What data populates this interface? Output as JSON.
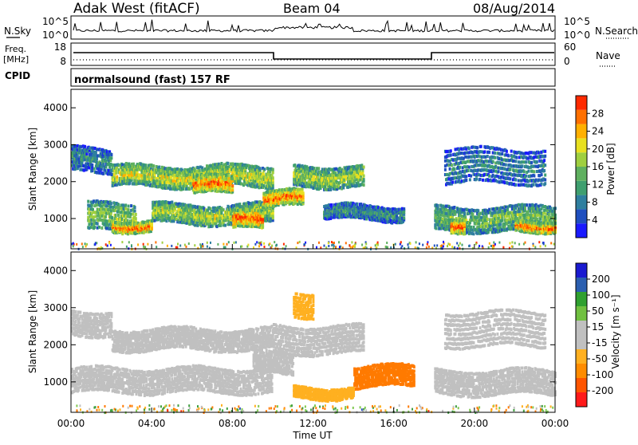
{
  "header": {
    "title": "Adak West (fitACF)",
    "beam": "Beam 04",
    "date": "08/Aug/2014"
  },
  "panels": {
    "nsky_label": "N.Sky",
    "nsearch_label": "N.Search",
    "nsky_ticks": [
      "10^5",
      "10^0"
    ],
    "nsearch_ticks": [
      "10^5",
      "10^0"
    ],
    "freq_label_1": "Freq.",
    "freq_label_2": "[MHz]",
    "freq_ticks": [
      "18",
      "8"
    ],
    "nave_label": "Nave",
    "nave_ticks": [
      "60",
      "0"
    ],
    "cpid_label": "CPID",
    "cpid_text": "normalsound (fast) 157 RF"
  },
  "colorbars": {
    "power": {
      "label": "Power [dB]",
      "ticks": [
        "28",
        "24",
        "20",
        "16",
        "12",
        "8",
        "4"
      ],
      "colors": [
        "#1a1aff",
        "#1f4fbf",
        "#2f7f9f",
        "#3f9f6f",
        "#5fb05f",
        "#9fcf3f",
        "#e8e020",
        "#ffb000",
        "#ff7000",
        "#ff2a00"
      ]
    },
    "velocity": {
      "label": "Velocity [m s⁻¹]",
      "ticks": [
        "200",
        "100",
        "50",
        "15",
        "-15",
        "-50",
        "-100",
        "-200"
      ],
      "colors": [
        "#ff1a1a",
        "#ff5500",
        "#ff8c00",
        "#ffb020",
        "#c0c0c0",
        "#c0c0c0",
        "#70c040",
        "#30a030",
        "#2b5fb0",
        "#1a1ad0"
      ]
    }
  },
  "chart_data": [
    {
      "type": "heatmap",
      "name": "power",
      "ylabel": "Slant Range [km]",
      "yticks": [
        "4000",
        "3000",
        "2000",
        "1000"
      ],
      "ylim": [
        180,
        4500
      ],
      "xlim": [
        0,
        24
      ],
      "bands": [
        {
          "t0": 0.8,
          "t1": 3.2,
          "r0": 700,
          "r1": 1500,
          "intensity": 0.55
        },
        {
          "t0": 2.0,
          "t1": 4.0,
          "r0": 700,
          "r1": 1000,
          "intensity": 0.9
        },
        {
          "t0": 4.0,
          "t1": 10.0,
          "r0": 900,
          "r1": 1450,
          "intensity": 0.6
        },
        {
          "t0": 8.0,
          "t1": 9.5,
          "r0": 750,
          "r1": 1250,
          "intensity": 0.95
        },
        {
          "t0": 2.0,
          "t1": 10.0,
          "r0": 1900,
          "r1": 2500,
          "intensity": 0.65
        },
        {
          "t0": 6.0,
          "t1": 8.0,
          "r0": 1700,
          "r1": 2200,
          "intensity": 0.9
        },
        {
          "t0": 9.5,
          "t1": 11.5,
          "r0": 1350,
          "r1": 1800,
          "intensity": 0.9
        },
        {
          "t0": 11.0,
          "t1": 14.5,
          "r0": 1900,
          "r1": 2500,
          "intensity": 0.6
        },
        {
          "t0": 0.0,
          "t1": 2.0,
          "r0": 2300,
          "r1": 3000,
          "intensity": 0.3
        },
        {
          "t0": 12.5,
          "t1": 16.5,
          "r0": 1000,
          "r1": 1400,
          "intensity": 0.35
        },
        {
          "t0": 18.0,
          "t1": 24.0,
          "r0": 700,
          "r1": 1400,
          "intensity": 0.5
        },
        {
          "t0": 18.8,
          "t1": 19.5,
          "r0": 700,
          "r1": 1100,
          "intensity": 0.9
        },
        {
          "t0": 22.0,
          "t1": 24.0,
          "r0": 700,
          "r1": 1000,
          "intensity": 0.9
        },
        {
          "t0": 18.5,
          "t1": 23.5,
          "r0": 2000,
          "r1": 3000,
          "intensity": 0.3
        }
      ]
    },
    {
      "type": "heatmap",
      "name": "velocity",
      "ylabel": "Slant Range [km]",
      "yticks": [
        "4000",
        "3000",
        "2000",
        "1000"
      ],
      "xlabel": "Time UT",
      "xticks": [
        "00:00",
        "04:00",
        "08:00",
        "12:00",
        "16:00",
        "20:00",
        "00:00"
      ],
      "ylim": [
        180,
        4500
      ],
      "xlim": [
        0,
        24
      ],
      "bands": [
        {
          "t0": 0.0,
          "t1": 10.0,
          "r0": 750,
          "r1": 1450,
          "vel": 0
        },
        {
          "t0": 2.0,
          "t1": 10.0,
          "r0": 1900,
          "r1": 2500,
          "vel": 0
        },
        {
          "t0": 10.0,
          "t1": 14.5,
          "r0": 1800,
          "r1": 2600,
          "vel": 0
        },
        {
          "t0": 0.0,
          "t1": 2.0,
          "r0": 2300,
          "r1": 3000,
          "vel": 0
        },
        {
          "t0": 18.0,
          "t1": 24.0,
          "r0": 700,
          "r1": 1400,
          "vel": 0
        },
        {
          "t0": 18.5,
          "t1": 23.5,
          "r0": 2000,
          "r1": 3000,
          "vel": 0
        },
        {
          "t0": 14.0,
          "t1": 17.0,
          "r0": 900,
          "r1": 1500,
          "vel": -60
        },
        {
          "t0": 11.0,
          "t1": 14.0,
          "r0": 600,
          "r1": 900,
          "vel": -40
        },
        {
          "t0": 11.0,
          "t1": 12.0,
          "r0": 2800,
          "r1": 3500,
          "vel": -40
        },
        {
          "t0": 9.0,
          "t1": 11.0,
          "r0": 1300,
          "r1": 1900,
          "vel": 0
        }
      ]
    }
  ]
}
